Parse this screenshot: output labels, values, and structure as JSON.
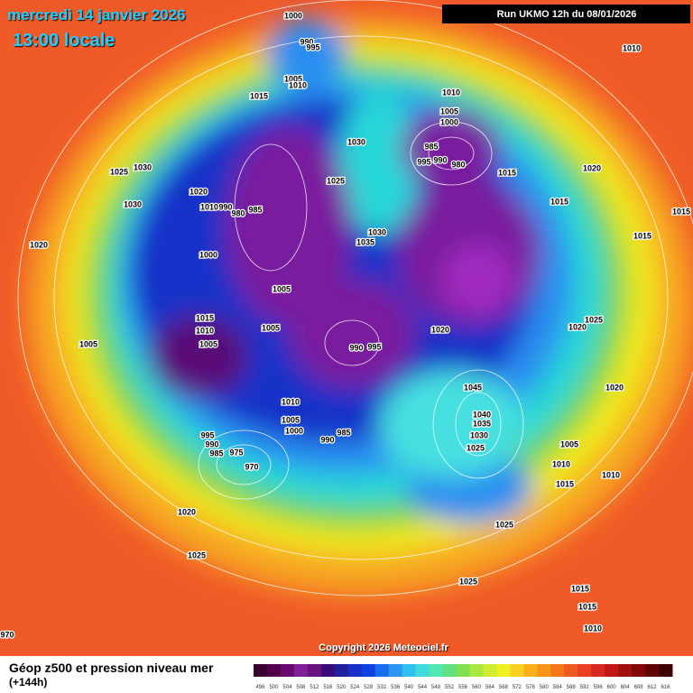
{
  "header": {
    "date": "mercredi 14 janvier 2026",
    "time": "13:00 locale",
    "run": "Run UKMO 12h du 08/01/2026"
  },
  "copyright": "Copyright 2026 Meteociel.fr",
  "legend": {
    "title": "Géop z500 et pression niveau mer",
    "subtitle": "(+144h)",
    "scale": [
      496,
      500,
      504,
      508,
      512,
      516,
      520,
      524,
      528,
      532,
      536,
      540,
      544,
      548,
      552,
      556,
      560,
      564,
      568,
      572,
      576,
      580,
      584,
      588,
      592,
      596,
      600,
      604,
      608,
      612,
      616
    ]
  },
  "isobar_labels": [
    1000,
    990,
    995,
    1005,
    1010,
    1015,
    1010,
    1005,
    1000,
    985,
    995,
    990,
    980,
    1015,
    1030,
    1025,
    1030,
    1035,
    1020,
    1015,
    1015,
    1015,
    1010,
    1025,
    1030,
    1030,
    1020,
    1010,
    990,
    980,
    985,
    1020,
    1000,
    1005,
    1015,
    1010,
    1005,
    1005,
    1005,
    990,
    995,
    1020,
    1025,
    1020,
    1045,
    1020,
    1010,
    1005,
    1000,
    990,
    985,
    995,
    990,
    985,
    975,
    970,
    1040,
    1035,
    1030,
    1025,
    1005,
    1010,
    1015,
    1010,
    1020,
    1025,
    1025,
    1025,
    1015,
    1015,
    1010,
    970
  ]
}
